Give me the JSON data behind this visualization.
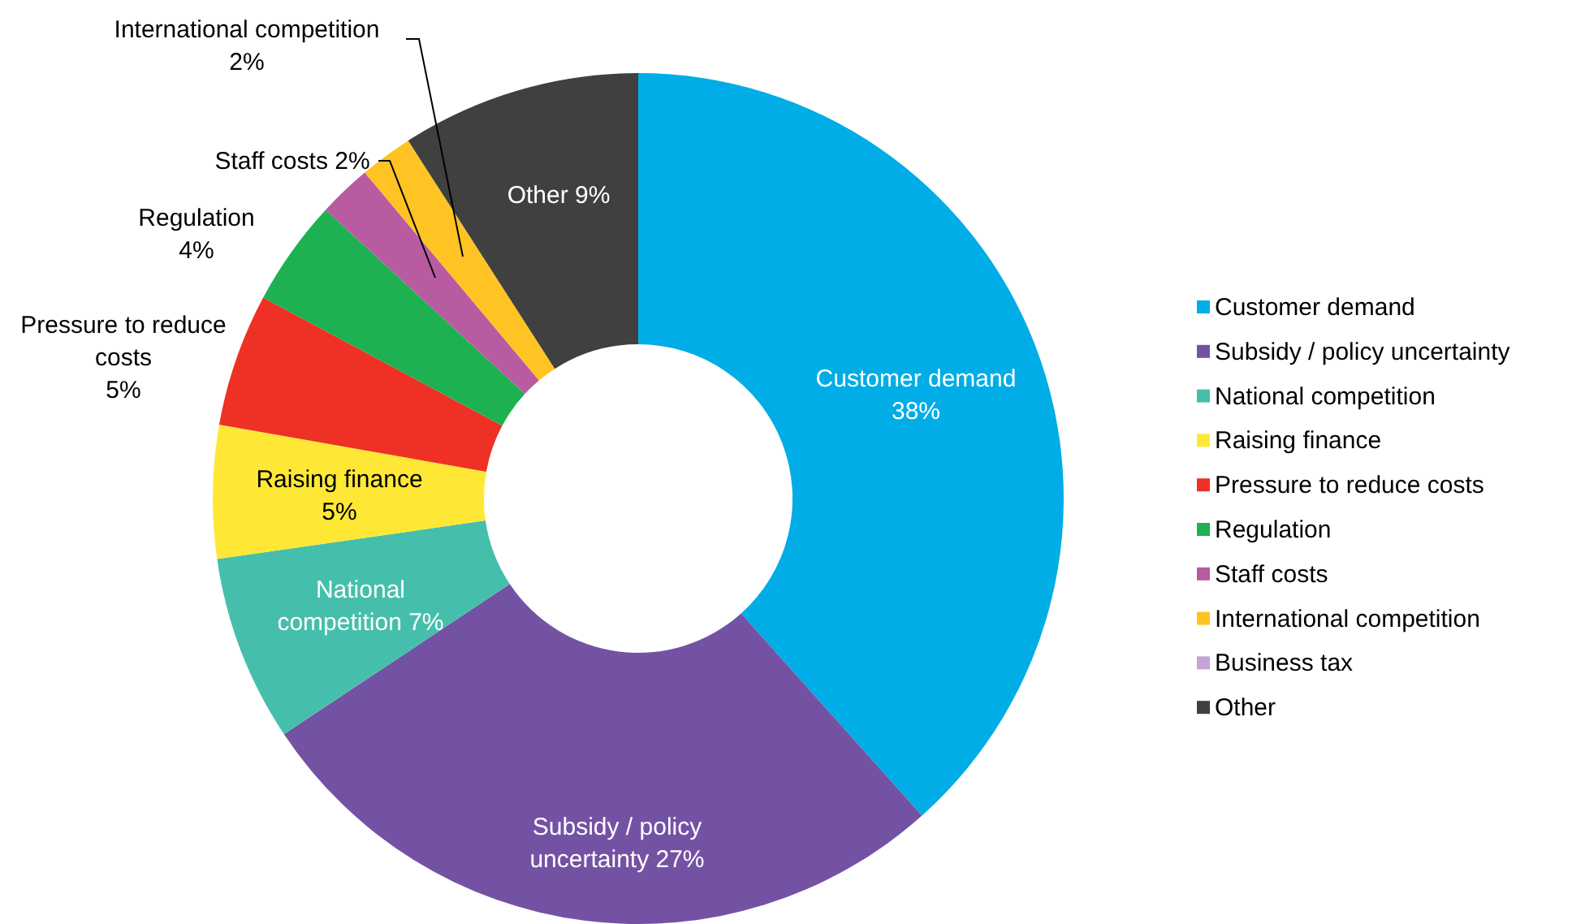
{
  "chart_data": {
    "type": "donut",
    "categories": [
      "Customer demand",
      "Subsidy / policy uncertainty",
      "National competition",
      "Raising finance",
      "Pressure to reduce costs",
      "Regulation",
      "Staff costs",
      "International competition",
      "Business tax",
      "Other"
    ],
    "values": [
      38,
      27,
      7,
      5,
      5,
      4,
      2,
      2,
      0,
      9
    ],
    "colors": [
      "#00ade6",
      "#7452a3",
      "#45bfac",
      "#ffe835",
      "#ee3124",
      "#1db151",
      "#b85ba0",
      "#ffc423",
      "#c2a5d6",
      "#404040"
    ],
    "value_labels": [
      "Customer demand 38%",
      "Subsidy / policy uncertainty 27%",
      "National competition 7%",
      "Raising finance 5%",
      "Pressure to reduce costs 5%",
      "Regulation 4%",
      "Staff costs 2%",
      "International competition 2%",
      null,
      "Other 9%"
    ],
    "legend": "right"
  }
}
